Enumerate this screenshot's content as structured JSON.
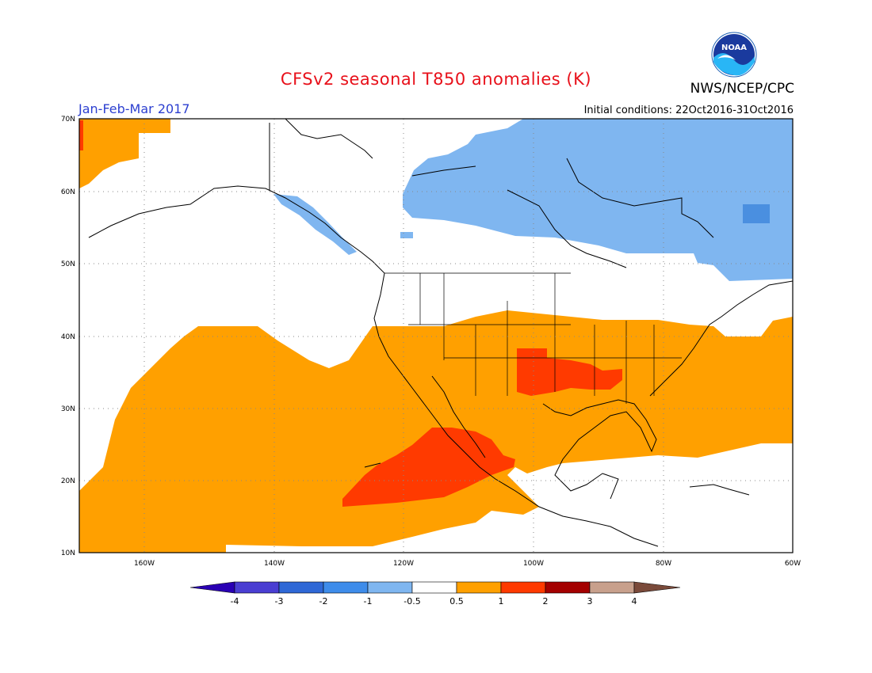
{
  "header": {
    "title": "CFSv2 seasonal T850 anomalies (K)",
    "agency": "NWS/NCEP/CPC",
    "season": "Jan-Feb-Mar 2017",
    "initial_conditions": "Initial conditions: 22Oct2016-31Oct2016",
    "logo_text": "NOAA"
  },
  "map": {
    "lat_labels": [
      "70N",
      "60N",
      "50N",
      "40N",
      "30N",
      "20N",
      "10N"
    ],
    "lon_labels": [
      "160W",
      "140W",
      "120W",
      "100W",
      "80W",
      "60W"
    ]
  },
  "colorbar": {
    "labels": [
      "-4",
      "-3",
      "-2",
      "-1",
      "-0.5",
      "0.5",
      "1",
      "2",
      "3",
      "4"
    ],
    "colors": [
      "#2a00b4",
      "#4a3ed2",
      "#2f68d6",
      "#3e8cea",
      "#7fb6f0",
      "#ffffff",
      "#ffa000",
      "#ff3a00",
      "#a40000",
      "#c8a08c",
      "#7a4a3a"
    ]
  }
}
